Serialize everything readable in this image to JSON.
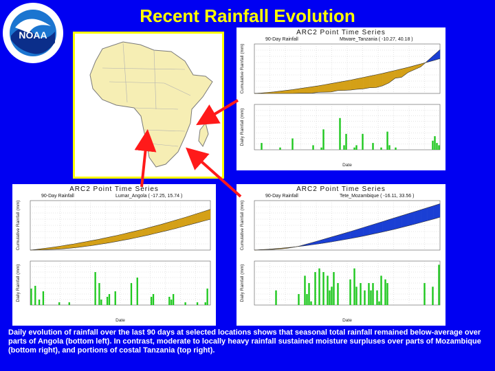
{
  "title": "Recent Rainfall Evolution",
  "logo": {
    "text": "NOAA",
    "icon": "noaa-logo-icon"
  },
  "caption": "Daily evolution of rainfall over the last 90 days at selected locations shows that seasonal total rainfall remained below-average over parts of Angola (bottom left). In contrast, moderate to locally heavy rainfall sustained moisture surpluses over parts of Mozambique (bottom right), and portions of costal Tanzania (top right).",
  "panels": [
    {
      "id": "tanzania",
      "title": "ARC2 Point Time Series",
      "left_label": "90-Day Rainfall",
      "right_label": "Mtware_Tanzania ( -10.27, 40.18 )",
      "ylabel_top": "Cumulative Rainfall (mm)",
      "ylabel_bottom": "Daily Rainfall (mm)",
      "xlabel": "Date"
    },
    {
      "id": "angola",
      "title": "ARC2 Point Time Series",
      "left_label": "90-Day Rainfall",
      "right_label": "Lumar_Angola ( -17.25, 15.74 )",
      "ylabel_top": "Cumulative Rainfall (mm)",
      "ylabel_bottom": "Daily Rainfall (mm)",
      "xlabel": "Date"
    },
    {
      "id": "mozambique",
      "title": "ARC2 Point Time Series",
      "left_label": "90-Day Rainfall",
      "right_label": "Tete_Mozambique ( -16.11, 33.56 )",
      "ylabel_top": "Cumulative Rainfall (mm)",
      "ylabel_bottom": "Daily Rainfall (mm)",
      "xlabel": "Date"
    }
  ],
  "chart_data": [
    {
      "type": "area",
      "panel": "tanzania",
      "series": [
        {
          "name": "",
          "values": [
            0,
            2,
            5,
            8,
            12,
            16,
            20,
            25,
            30,
            35,
            40,
            46,
            52,
            58,
            64,
            70,
            77,
            84,
            91,
            98,
            105,
            113,
            121,
            129,
            137,
            146,
            155,
            164,
            173,
            183
          ]
        },
        {
          "name": "",
          "values": [
            0,
            0,
            0,
            0,
            0,
            0,
            0,
            1,
            1,
            2,
            6,
            7,
            8,
            15,
            16,
            18,
            22,
            24,
            30,
            31,
            40,
            55,
            80,
            85,
            110,
            125,
            140,
            170,
            200,
            230
          ]
        }
      ],
      "colors": [
        "#d4a017",
        "#1a3fd4"
      ],
      "ylim": [
        0,
        260
      ]
    },
    {
      "type": "bar",
      "panel": "tanzania",
      "values": [
        0,
        0,
        0,
        3,
        0,
        0,
        0,
        0,
        0,
        0,
        0,
        0,
        1,
        0,
        0,
        0,
        0,
        0,
        5,
        0,
        0,
        0,
        0,
        0,
        0,
        0,
        0,
        0,
        2,
        0,
        0,
        0,
        1,
        9,
        0,
        0,
        0,
        0,
        0,
        0,
        0,
        14,
        0,
        2,
        7,
        0,
        0,
        0,
        1,
        2,
        0,
        0,
        7,
        0,
        0,
        0,
        0,
        3,
        0,
        0,
        0,
        1,
        0,
        0,
        8,
        2,
        0,
        0,
        1,
        0,
        0,
        0,
        0,
        0,
        0,
        0,
        0,
        0,
        0,
        0,
        0,
        0,
        0,
        0,
        0,
        0,
        4,
        6,
        3,
        2
      ],
      "color": "#1ec81e",
      "ylim": [
        0,
        20
      ]
    },
    {
      "type": "area",
      "panel": "angola",
      "series": [
        {
          "name": "",
          "values": [
            0,
            4,
            9,
            14,
            19,
            25,
            31,
            37,
            44,
            51,
            58,
            65,
            73,
            81,
            89,
            98,
            107,
            116,
            125,
            135,
            145,
            155,
            166,
            177,
            188,
            199,
            211,
            223,
            235,
            247
          ]
        },
        {
          "name": "",
          "values": [
            0,
            1,
            2,
            4,
            5,
            7,
            10,
            14,
            18,
            23,
            28,
            34,
            40,
            46,
            53,
            60,
            67,
            75,
            83,
            91,
            100,
            109,
            118,
            127,
            137,
            147,
            157,
            167,
            177,
            187
          ]
        }
      ],
      "colors": [
        "#d4a017",
        "#1a3fd4"
      ],
      "ylim": [
        0,
        300
      ]
    },
    {
      "type": "bar",
      "panel": "angola",
      "values": [
        6,
        0,
        7,
        0,
        2,
        0,
        5,
        0,
        0,
        0,
        0,
        0,
        0,
        0,
        1,
        0,
        0,
        0,
        0,
        1,
        0,
        0,
        0,
        0,
        0,
        0,
        0,
        0,
        0,
        0,
        0,
        0,
        12,
        0,
        8,
        2,
        0,
        0,
        3,
        4,
        0,
        0,
        5,
        0,
        0,
        0,
        0,
        0,
        0,
        0,
        8,
        0,
        0,
        10,
        0,
        0,
        0,
        0,
        0,
        0,
        3,
        4,
        0,
        0,
        0,
        0,
        0,
        0,
        0,
        3,
        2,
        4,
        0,
        0,
        0,
        0,
        0,
        1,
        0,
        0,
        0,
        0,
        0,
        1,
        0,
        0,
        0,
        1,
        6,
        0
      ],
      "color": "#1ec81e",
      "ylim": [
        0,
        16
      ]
    },
    {
      "type": "area",
      "panel": "mozambique",
      "series": [
        {
          "name": "",
          "values": [
            0,
            3,
            6,
            10,
            14,
            19,
            24,
            30,
            36,
            43,
            50,
            58,
            66,
            75,
            84,
            93,
            103,
            113,
            124,
            135,
            146,
            158,
            170,
            183,
            196,
            209,
            223,
            237,
            251,
            266
          ]
        },
        {
          "name": "",
          "values": [
            0,
            2,
            4,
            6,
            9,
            14,
            22,
            32,
            46,
            60,
            75,
            90,
            105,
            120,
            135,
            150,
            166,
            182,
            198,
            214,
            230,
            246,
            262,
            278,
            294,
            310,
            326,
            342,
            358,
            375
          ]
        }
      ],
      "colors": [
        "#d4a017",
        "#1a3fd4"
      ],
      "ylim": [
        0,
        400
      ]
    },
    {
      "type": "bar",
      "panel": "mozambique",
      "values": [
        0,
        0,
        0,
        0,
        0,
        0,
        0,
        0,
        0,
        0,
        4,
        0,
        0,
        0,
        0,
        0,
        0,
        0,
        0,
        0,
        0,
        3,
        0,
        0,
        8,
        3,
        6,
        1,
        0,
        9,
        0,
        10,
        0,
        9,
        0,
        8,
        4,
        5,
        9,
        0,
        6,
        0,
        0,
        0,
        0,
        0,
        7,
        0,
        10,
        5,
        0,
        6,
        0,
        4,
        0,
        6,
        4,
        6,
        0,
        4,
        1,
        8,
        0,
        7,
        6,
        0,
        0,
        0,
        0,
        0,
        0,
        0,
        0,
        0,
        0,
        0,
        0,
        0,
        0,
        0,
        0,
        0,
        6,
        0,
        0,
        0,
        5,
        0,
        0,
        11
      ],
      "color": "#1ec81e",
      "ylim": [
        0,
        12
      ]
    }
  ]
}
